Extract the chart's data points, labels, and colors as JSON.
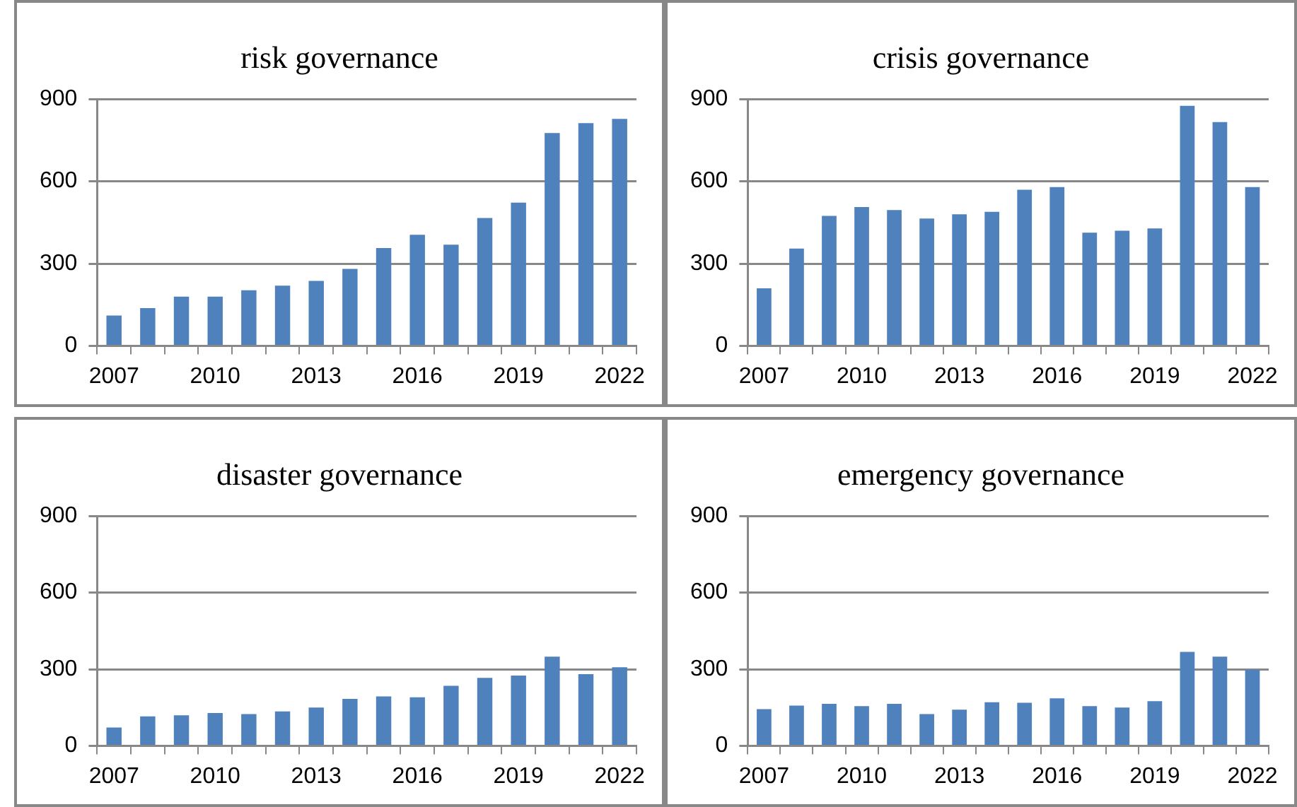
{
  "chart_data": [
    {
      "type": "bar",
      "title": "risk governance",
      "categories": [
        "2007",
        null,
        null,
        "2010",
        null,
        null,
        "2013",
        null,
        null,
        "2016",
        null,
        null,
        "2019",
        null,
        null,
        "2022"
      ],
      "values": [
        111,
        138,
        180,
        180,
        203,
        220,
        237,
        281,
        357,
        405,
        369,
        466,
        522,
        776,
        812,
        827
      ],
      "color": "#4f81bd",
      "ylim": [
        0,
        900
      ],
      "yticks": [
        0,
        300,
        600,
        900
      ],
      "grid": "y"
    },
    {
      "type": "bar",
      "title": "crisis governance",
      "categories": [
        "2007",
        null,
        null,
        "2010",
        null,
        null,
        "2013",
        null,
        null,
        "2016",
        null,
        null,
        "2019",
        null,
        null,
        "2022"
      ],
      "values": [
        210,
        355,
        474,
        506,
        495,
        464,
        480,
        489,
        569,
        579,
        413,
        420,
        428,
        875,
        816,
        579
      ],
      "color": "#4f81bd",
      "ylim": [
        0,
        900
      ],
      "yticks": [
        0,
        300,
        600,
        900
      ],
      "grid": "y"
    },
    {
      "type": "bar",
      "title": "disaster governance",
      "categories": [
        "2007",
        null,
        null,
        "2010",
        null,
        null,
        "2013",
        null,
        null,
        "2016",
        null,
        null,
        "2019",
        null,
        null,
        "2022"
      ],
      "values": [
        72,
        116,
        120,
        129,
        125,
        135,
        150,
        184,
        194,
        190,
        235,
        266,
        275,
        349,
        281,
        308
      ],
      "color": "#4f81bd",
      "ylim": [
        0,
        900
      ],
      "yticks": [
        0,
        300,
        600,
        900
      ],
      "grid": "y"
    },
    {
      "type": "bar",
      "title": "emergency governance",
      "categories": [
        "2007",
        null,
        null,
        "2010",
        null,
        null,
        "2013",
        null,
        null,
        "2016",
        null,
        null,
        "2019",
        null,
        null,
        "2022"
      ],
      "values": [
        144,
        158,
        165,
        156,
        165,
        125,
        142,
        171,
        169,
        186,
        156,
        150,
        175,
        368,
        349,
        298
      ],
      "color": "#4f81bd",
      "ylim": [
        0,
        900
      ],
      "yticks": [
        0,
        300,
        600,
        900
      ],
      "grid": "y"
    }
  ]
}
